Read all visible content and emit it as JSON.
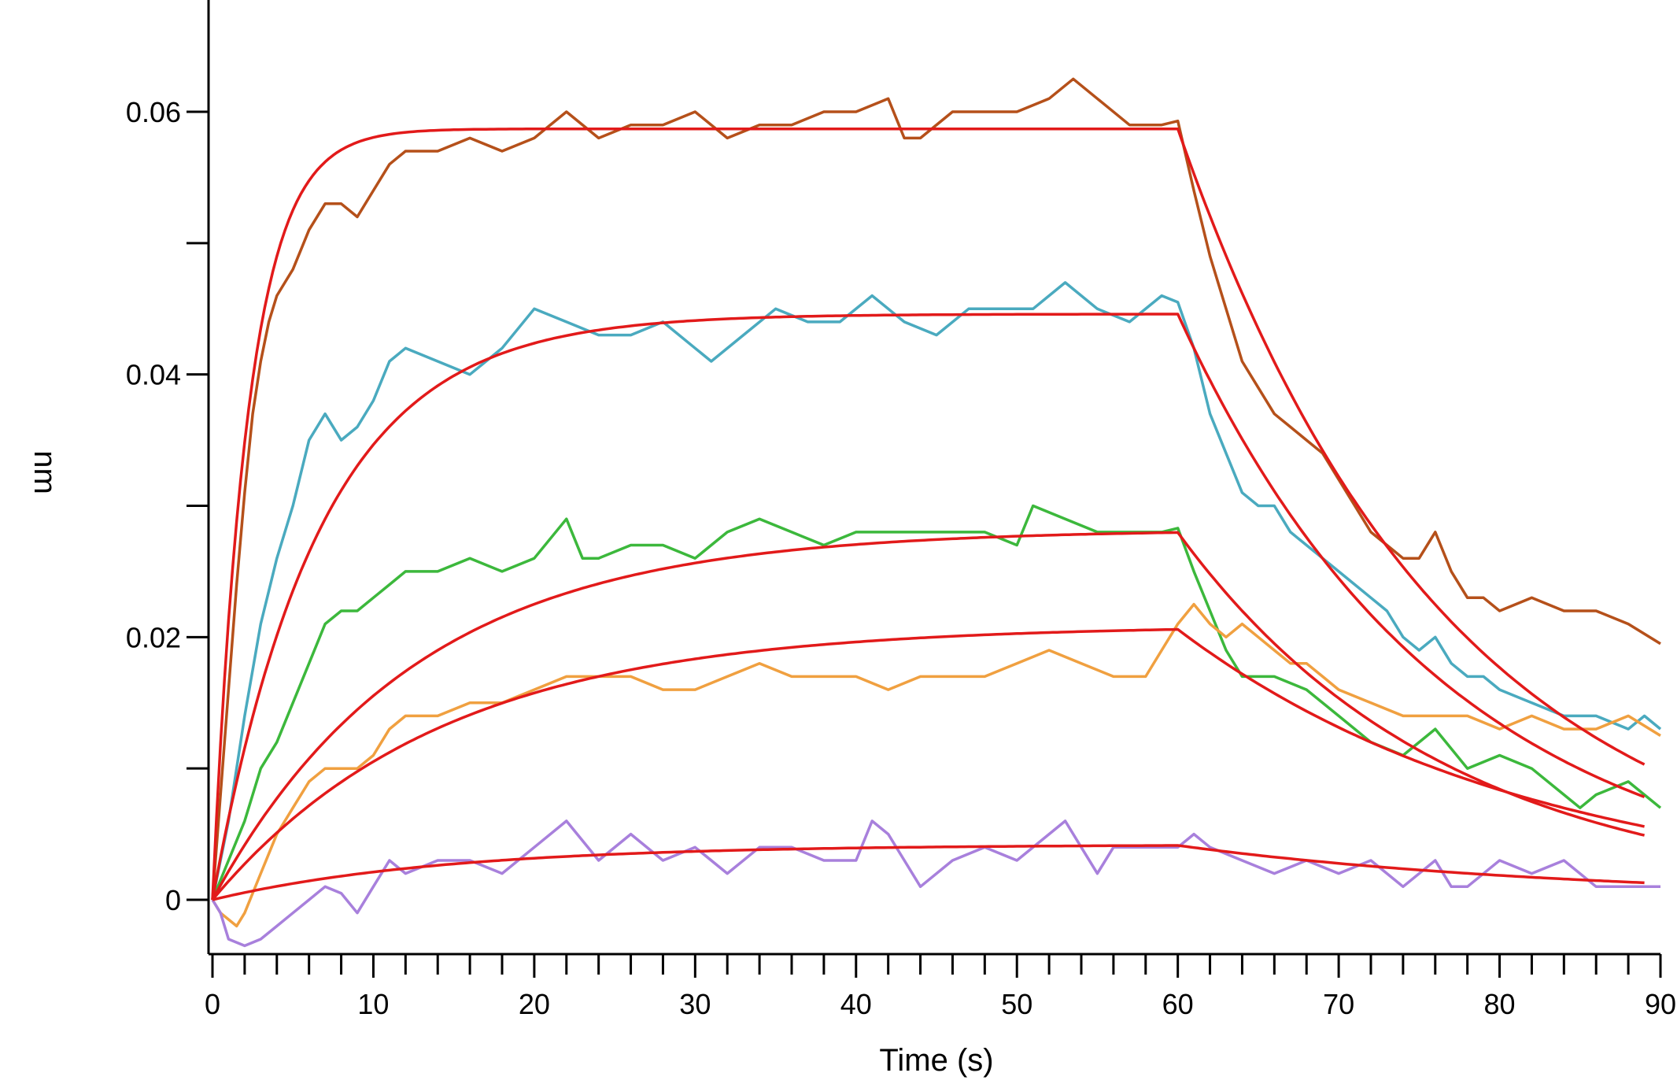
{
  "chart_data": {
    "type": "line",
    "title": "",
    "xlabel": "Time (s)",
    "ylabel": "nm",
    "xlim": [
      0,
      90
    ],
    "ylim": [
      -0.004,
      0.068
    ],
    "x_ticks": [
      0,
      10,
      20,
      30,
      40,
      50,
      60,
      70,
      80,
      90
    ],
    "x_tick_labels": [
      "0",
      "10",
      "20",
      "30",
      "40",
      "50",
      "60",
      "70",
      "80",
      "90"
    ],
    "y_ticks": [
      0,
      0.02,
      0.04,
      0.06
    ],
    "y_tick_labels": [
      "0",
      "0.02",
      "0.04",
      "0.06"
    ],
    "grid": false,
    "legend": "none",
    "association_end": 60,
    "series": [
      {
        "color": "#b5501a",
        "values": [
          [
            0,
            0
          ],
          [
            0.5,
            0.008
          ],
          [
            1,
            0.016
          ],
          [
            1.5,
            0.024
          ],
          [
            2,
            0.031
          ],
          [
            2.5,
            0.037
          ],
          [
            3,
            0.041
          ],
          [
            3.5,
            0.044
          ],
          [
            4,
            0.046
          ],
          [
            4.5,
            0.047
          ],
          [
            5,
            0.048
          ],
          [
            6,
            0.051
          ],
          [
            7,
            0.053
          ],
          [
            8,
            0.053
          ],
          [
            9,
            0.052
          ],
          [
            10,
            0.054
          ],
          [
            11,
            0.056
          ],
          [
            12,
            0.057
          ],
          [
            14,
            0.057
          ],
          [
            16,
            0.058
          ],
          [
            18,
            0.057
          ],
          [
            20,
            0.058
          ],
          [
            22,
            0.06
          ],
          [
            24,
            0.058
          ],
          [
            26,
            0.059
          ],
          [
            28,
            0.059
          ],
          [
            30,
            0.06
          ],
          [
            32,
            0.058
          ],
          [
            34,
            0.059
          ],
          [
            36,
            0.059
          ],
          [
            38,
            0.06
          ],
          [
            40,
            0.06
          ],
          [
            42,
            0.061
          ],
          [
            43,
            0.058
          ],
          [
            44,
            0.058
          ],
          [
            46,
            0.06
          ],
          [
            48,
            0.06
          ],
          [
            50,
            0.06
          ],
          [
            52,
            0.061
          ],
          [
            53.5,
            0.0625
          ],
          [
            55,
            0.061
          ],
          [
            57,
            0.059
          ],
          [
            59,
            0.059
          ],
          [
            60,
            0.0593
          ],
          [
            61,
            0.054
          ],
          [
            62,
            0.049
          ],
          [
            63,
            0.045
          ],
          [
            64,
            0.041
          ],
          [
            65,
            0.039
          ],
          [
            66,
            0.037
          ],
          [
            67,
            0.036
          ],
          [
            68,
            0.035
          ],
          [
            69,
            0.034
          ],
          [
            70,
            0.032
          ],
          [
            71,
            0.03
          ],
          [
            72,
            0.028
          ],
          [
            73,
            0.027
          ],
          [
            74,
            0.026
          ],
          [
            75,
            0.026
          ],
          [
            76,
            0.028
          ],
          [
            77,
            0.025
          ],
          [
            78,
            0.023
          ],
          [
            79,
            0.023
          ],
          [
            80,
            0.022
          ],
          [
            82,
            0.023
          ],
          [
            84,
            0.022
          ],
          [
            86,
            0.022
          ],
          [
            88,
            0.021
          ],
          [
            90,
            0.0195
          ]
        ]
      },
      {
        "color": "#4aaabf",
        "values": [
          [
            0,
            0
          ],
          [
            1,
            0.006
          ],
          [
            2,
            0.014
          ],
          [
            3,
            0.021
          ],
          [
            4,
            0.026
          ],
          [
            5,
            0.03
          ],
          [
            6,
            0.035
          ],
          [
            7,
            0.037
          ],
          [
            8,
            0.035
          ],
          [
            9,
            0.036
          ],
          [
            10,
            0.038
          ],
          [
            11,
            0.041
          ],
          [
            12,
            0.042
          ],
          [
            14,
            0.041
          ],
          [
            16,
            0.04
          ],
          [
            18,
            0.042
          ],
          [
            20,
            0.045
          ],
          [
            22,
            0.044
          ],
          [
            24,
            0.043
          ],
          [
            26,
            0.043
          ],
          [
            28,
            0.044
          ],
          [
            30,
            0.042
          ],
          [
            31,
            0.041
          ],
          [
            33,
            0.043
          ],
          [
            35,
            0.045
          ],
          [
            37,
            0.044
          ],
          [
            39,
            0.044
          ],
          [
            41,
            0.046
          ],
          [
            43,
            0.044
          ],
          [
            45,
            0.043
          ],
          [
            47,
            0.045
          ],
          [
            49,
            0.045
          ],
          [
            51,
            0.045
          ],
          [
            53,
            0.047
          ],
          [
            55,
            0.045
          ],
          [
            57,
            0.044
          ],
          [
            59,
            0.046
          ],
          [
            60,
            0.0455
          ],
          [
            61,
            0.042
          ],
          [
            62,
            0.037
          ],
          [
            63,
            0.034
          ],
          [
            64,
            0.031
          ],
          [
            65,
            0.03
          ],
          [
            66,
            0.03
          ],
          [
            67,
            0.028
          ],
          [
            68,
            0.027
          ],
          [
            69,
            0.026
          ],
          [
            70,
            0.025
          ],
          [
            71,
            0.024
          ],
          [
            72,
            0.023
          ],
          [
            73,
            0.022
          ],
          [
            74,
            0.02
          ],
          [
            75,
            0.019
          ],
          [
            76,
            0.02
          ],
          [
            77,
            0.018
          ],
          [
            78,
            0.017
          ],
          [
            79,
            0.017
          ],
          [
            80,
            0.016
          ],
          [
            82,
            0.015
          ],
          [
            84,
            0.014
          ],
          [
            86,
            0.014
          ],
          [
            88,
            0.013
          ],
          [
            89,
            0.014
          ],
          [
            90,
            0.013
          ]
        ]
      },
      {
        "color": "#3cb83c",
        "values": [
          [
            0,
            0
          ],
          [
            1,
            0.003
          ],
          [
            2,
            0.006
          ],
          [
            3,
            0.01
          ],
          [
            4,
            0.012
          ],
          [
            5,
            0.015
          ],
          [
            6,
            0.018
          ],
          [
            7,
            0.021
          ],
          [
            8,
            0.022
          ],
          [
            9,
            0.022
          ],
          [
            10,
            0.023
          ],
          [
            11,
            0.024
          ],
          [
            12,
            0.025
          ],
          [
            14,
            0.025
          ],
          [
            16,
            0.026
          ],
          [
            18,
            0.025
          ],
          [
            20,
            0.026
          ],
          [
            22,
            0.029
          ],
          [
            23,
            0.026
          ],
          [
            24,
            0.026
          ],
          [
            26,
            0.027
          ],
          [
            28,
            0.027
          ],
          [
            30,
            0.026
          ],
          [
            32,
            0.028
          ],
          [
            34,
            0.029
          ],
          [
            36,
            0.028
          ],
          [
            38,
            0.027
          ],
          [
            40,
            0.028
          ],
          [
            42,
            0.028
          ],
          [
            44,
            0.028
          ],
          [
            46,
            0.028
          ],
          [
            48,
            0.028
          ],
          [
            50,
            0.027
          ],
          [
            51,
            0.03
          ],
          [
            53,
            0.029
          ],
          [
            55,
            0.028
          ],
          [
            57,
            0.028
          ],
          [
            59,
            0.028
          ],
          [
            60,
            0.0283
          ],
          [
            61,
            0.025
          ],
          [
            62,
            0.022
          ],
          [
            63,
            0.019
          ],
          [
            64,
            0.017
          ],
          [
            66,
            0.017
          ],
          [
            68,
            0.016
          ],
          [
            70,
            0.014
          ],
          [
            72,
            0.012
          ],
          [
            74,
            0.011
          ],
          [
            76,
            0.013
          ],
          [
            78,
            0.01
          ],
          [
            80,
            0.011
          ],
          [
            82,
            0.01
          ],
          [
            84,
            0.008
          ],
          [
            85,
            0.007
          ],
          [
            86,
            0.008
          ],
          [
            88,
            0.009
          ],
          [
            90,
            0.007
          ]
        ]
      },
      {
        "color": "#f0a040",
        "values": [
          [
            0,
            0
          ],
          [
            0.5,
            -0.001
          ],
          [
            1,
            -0.0015
          ],
          [
            1.5,
            -0.002
          ],
          [
            2,
            -0.001
          ],
          [
            3,
            0.002
          ],
          [
            4,
            0.005
          ],
          [
            5,
            0.007
          ],
          [
            6,
            0.009
          ],
          [
            7,
            0.01
          ],
          [
            8,
            0.01
          ],
          [
            9,
            0.01
          ],
          [
            10,
            0.011
          ],
          [
            11,
            0.013
          ],
          [
            12,
            0.014
          ],
          [
            14,
            0.014
          ],
          [
            16,
            0.015
          ],
          [
            18,
            0.015
          ],
          [
            20,
            0.016
          ],
          [
            22,
            0.017
          ],
          [
            24,
            0.017
          ],
          [
            26,
            0.017
          ],
          [
            28,
            0.016
          ],
          [
            30,
            0.016
          ],
          [
            32,
            0.017
          ],
          [
            34,
            0.018
          ],
          [
            36,
            0.017
          ],
          [
            38,
            0.017
          ],
          [
            40,
            0.017
          ],
          [
            42,
            0.016
          ],
          [
            44,
            0.017
          ],
          [
            46,
            0.017
          ],
          [
            48,
            0.017
          ],
          [
            50,
            0.018
          ],
          [
            52,
            0.019
          ],
          [
            54,
            0.018
          ],
          [
            56,
            0.017
          ],
          [
            58,
            0.017
          ],
          [
            59,
            0.019
          ],
          [
            60,
            0.021
          ],
          [
            61,
            0.0225
          ],
          [
            62,
            0.021
          ],
          [
            63,
            0.02
          ],
          [
            64,
            0.021
          ],
          [
            65,
            0.02
          ],
          [
            66,
            0.019
          ],
          [
            67,
            0.018
          ],
          [
            68,
            0.018
          ],
          [
            69,
            0.017
          ],
          [
            70,
            0.016
          ],
          [
            72,
            0.015
          ],
          [
            74,
            0.014
          ],
          [
            76,
            0.014
          ],
          [
            78,
            0.014
          ],
          [
            80,
            0.013
          ],
          [
            82,
            0.014
          ],
          [
            84,
            0.013
          ],
          [
            86,
            0.013
          ],
          [
            88,
            0.014
          ],
          [
            90,
            0.0125
          ]
        ]
      },
      {
        "color": "#a880dc",
        "values": [
          [
            0,
            0
          ],
          [
            0.5,
            -0.001
          ],
          [
            1,
            -0.003
          ],
          [
            2,
            -0.0035
          ],
          [
            3,
            -0.003
          ],
          [
            4,
            -0.002
          ],
          [
            5,
            -0.001
          ],
          [
            6,
            0.0
          ],
          [
            7,
            0.001
          ],
          [
            8,
            0.0005
          ],
          [
            9,
            -0.001
          ],
          [
            10,
            0.001
          ],
          [
            11,
            0.003
          ],
          [
            12,
            0.002
          ],
          [
            14,
            0.003
          ],
          [
            16,
            0.003
          ],
          [
            18,
            0.002
          ],
          [
            20,
            0.004
          ],
          [
            22,
            0.006
          ],
          [
            24,
            0.003
          ],
          [
            26,
            0.005
          ],
          [
            28,
            0.003
          ],
          [
            30,
            0.004
          ],
          [
            32,
            0.002
          ],
          [
            34,
            0.004
          ],
          [
            36,
            0.004
          ],
          [
            38,
            0.003
          ],
          [
            40,
            0.003
          ],
          [
            41,
            0.006
          ],
          [
            42,
            0.005
          ],
          [
            44,
            0.001
          ],
          [
            46,
            0.003
          ],
          [
            48,
            0.004
          ],
          [
            50,
            0.003
          ],
          [
            52,
            0.005
          ],
          [
            53,
            0.006
          ],
          [
            54,
            0.004
          ],
          [
            55,
            0.002
          ],
          [
            56,
            0.004
          ],
          [
            58,
            0.004
          ],
          [
            60,
            0.004
          ],
          [
            61,
            0.005
          ],
          [
            62,
            0.004
          ],
          [
            64,
            0.003
          ],
          [
            66,
            0.002
          ],
          [
            68,
            0.003
          ],
          [
            70,
            0.002
          ],
          [
            72,
            0.003
          ],
          [
            74,
            0.001
          ],
          [
            76,
            0.003
          ],
          [
            77,
            0.001
          ],
          [
            78,
            0.001
          ],
          [
            80,
            0.003
          ],
          [
            82,
            0.002
          ],
          [
            84,
            0.003
          ],
          [
            86,
            0.001
          ],
          [
            88,
            0.001
          ],
          [
            90,
            0.001
          ]
        ]
      }
    ],
    "fits": [
      {
        "color": "#e21a1a",
        "rmax": 0.0587,
        "kobs": 0.45,
        "kdiss": 0.06,
        "end": 89
      },
      {
        "color": "#e21a1a",
        "rmax": 0.0446,
        "kobs": 0.15,
        "kdiss": 0.06,
        "end": 89
      },
      {
        "color": "#e21a1a",
        "rmax": 0.0282,
        "kobs": 0.08,
        "kdiss": 0.06,
        "end": 89
      },
      {
        "color": "#e21a1a",
        "rmax": 0.0209,
        "kobs": 0.07,
        "kdiss": 0.045,
        "end": 89
      },
      {
        "color": "#e21a1a",
        "rmax": 0.0042,
        "kobs": 0.07,
        "kdiss": 0.04,
        "end": 89
      }
    ]
  }
}
